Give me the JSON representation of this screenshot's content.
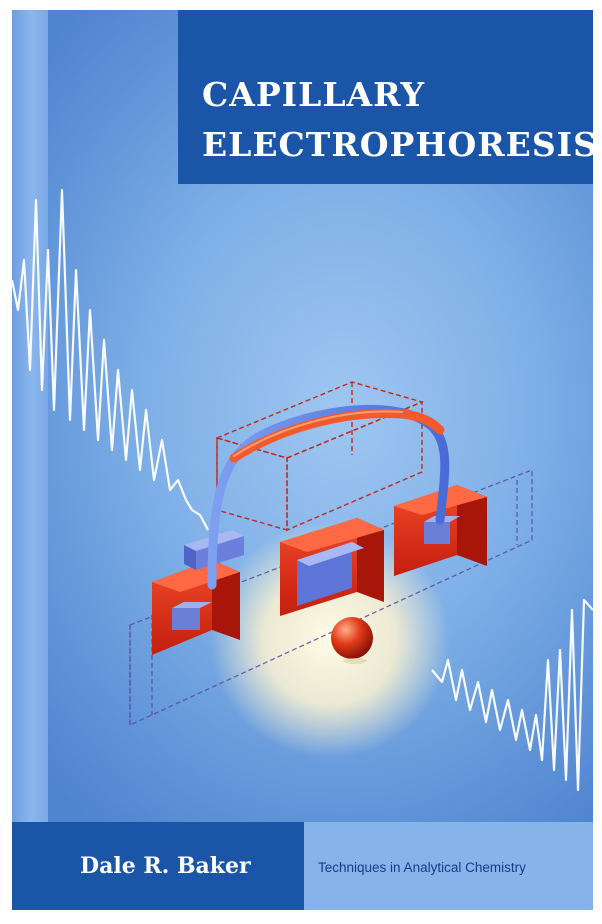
{
  "book": {
    "title_line_1": "CAPILLARY",
    "title_line_2": "ELECTROPHORESIS",
    "author": "Dale R. Baker",
    "series": "Techniques in Analytical Chemistry"
  },
  "colors": {
    "title_panel": "#1b55a8",
    "background_blue": "#7fb0e7",
    "series_panel": "#86b3ea",
    "block_red": "#e02a17",
    "capillary_blue": "#5b7fe0",
    "glow": "#fff8d8"
  },
  "icons": {
    "trace": "electropherogram-trace-icon",
    "apparatus": "capillary-electrophoresis-apparatus-icon",
    "particle": "sphere-icon"
  }
}
